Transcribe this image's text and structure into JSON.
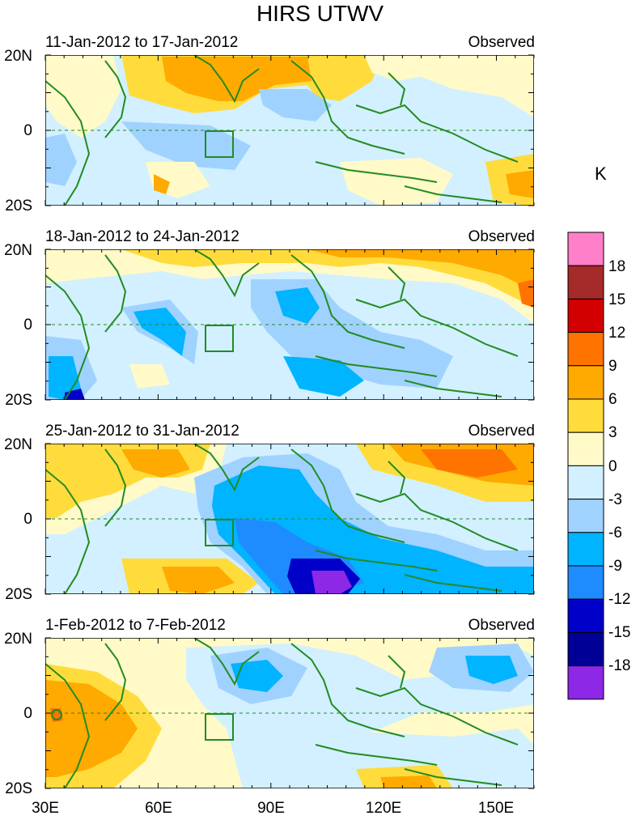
{
  "figure": {
    "title": "HIRS UTWV",
    "unit": "K"
  },
  "chart_data": {
    "type": "heatmap",
    "title": "HIRS UTWV",
    "xlabel": "",
    "ylabel": "",
    "xlim": [
      30,
      160
    ],
    "ylim": [
      -20,
      20
    ],
    "x_ticks": [
      "30E",
      "60E",
      "90E",
      "120E",
      "150E"
    ],
    "y_ticks": [
      "20N",
      "0",
      "20S"
    ],
    "colorbar": {
      "unit": "K",
      "levels": [
        18,
        15,
        12,
        9,
        6,
        3,
        0,
        -3,
        -6,
        -9,
        -12,
        -15,
        -18
      ],
      "colors": [
        "#ff7fc8",
        "#a52a2a",
        "#d20000",
        "#ff7300",
        "#ffaa00",
        "#ffdc3c",
        "#fffac8",
        "#d2f0ff",
        "#a0d2ff",
        "#00b4ff",
        "#1e8cff",
        "#0000c8",
        "#000096",
        "#8c28e6"
      ]
    },
    "panels": [
      {
        "period": "11-Jan-2012 to 17-Jan-2012",
        "source": "Observed"
      },
      {
        "period": "18-Jan-2012 to 24-Jan-2012",
        "source": "Observed"
      },
      {
        "period": "25-Jan-2012 to 31-Jan-2012",
        "source": "Observed"
      },
      {
        "period": "1-Feb-2012 to 7-Feb-2012",
        "source": "Observed"
      }
    ]
  }
}
